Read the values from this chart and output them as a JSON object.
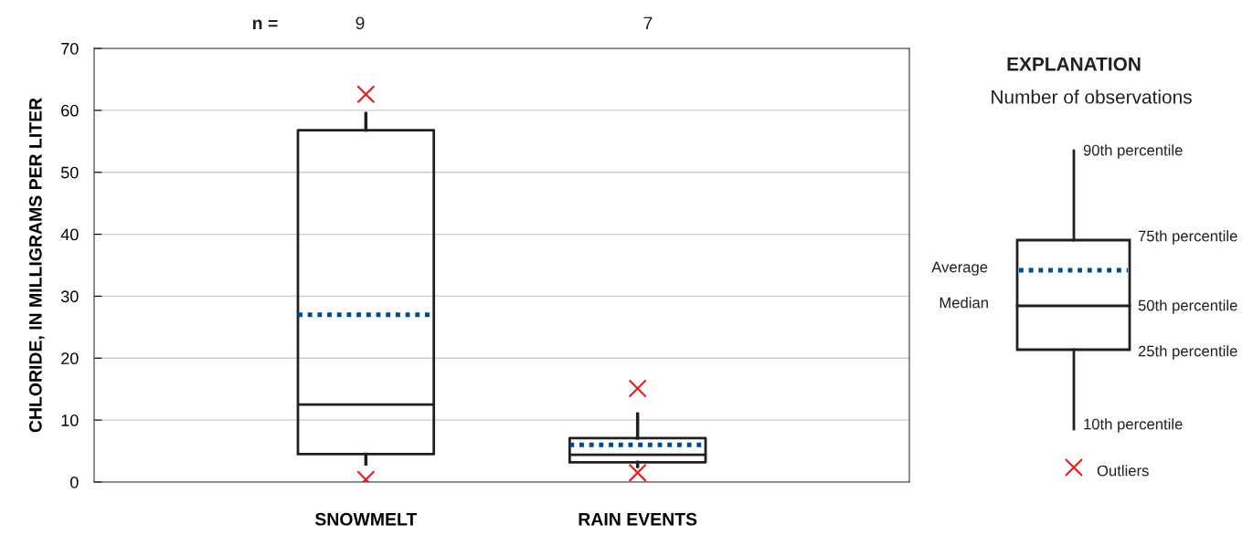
{
  "chart_data": {
    "type": "box",
    "ylabel": "CHLORIDE, IN MILLIGRAMS PER LITER",
    "categories": [
      "SNOWMELT",
      "RAIN EVENTS"
    ],
    "boxes": [
      {
        "low": 2.9,
        "q1": 4.5,
        "median": 12.5,
        "q3": 56.8,
        "high": 59.5,
        "mean": 27.0,
        "outliers": [
          62.6,
          0.4
        ]
      },
      {
        "low": 2.5,
        "q1": 3.2,
        "median": 4.4,
        "q3": 7.1,
        "high": 11.0,
        "mean": 6.0,
        "outliers": [
          15.1,
          1.5
        ]
      }
    ],
    "color": "#231f20",
    "ylim": [
      0,
      70
    ],
    "yticks": [
      0,
      10,
      20,
      30,
      40,
      50,
      60,
      70
    ],
    "grid": "y",
    "annotations": [
      "n =",
      "9",
      "7",
      "EXPLANATION",
      "Number of observations",
      "90th percentile",
      "75th percentile",
      "Average",
      "Median",
      "50th percentile",
      "25th percentile",
      "10th percentile",
      "Outliers"
    ]
  }
}
